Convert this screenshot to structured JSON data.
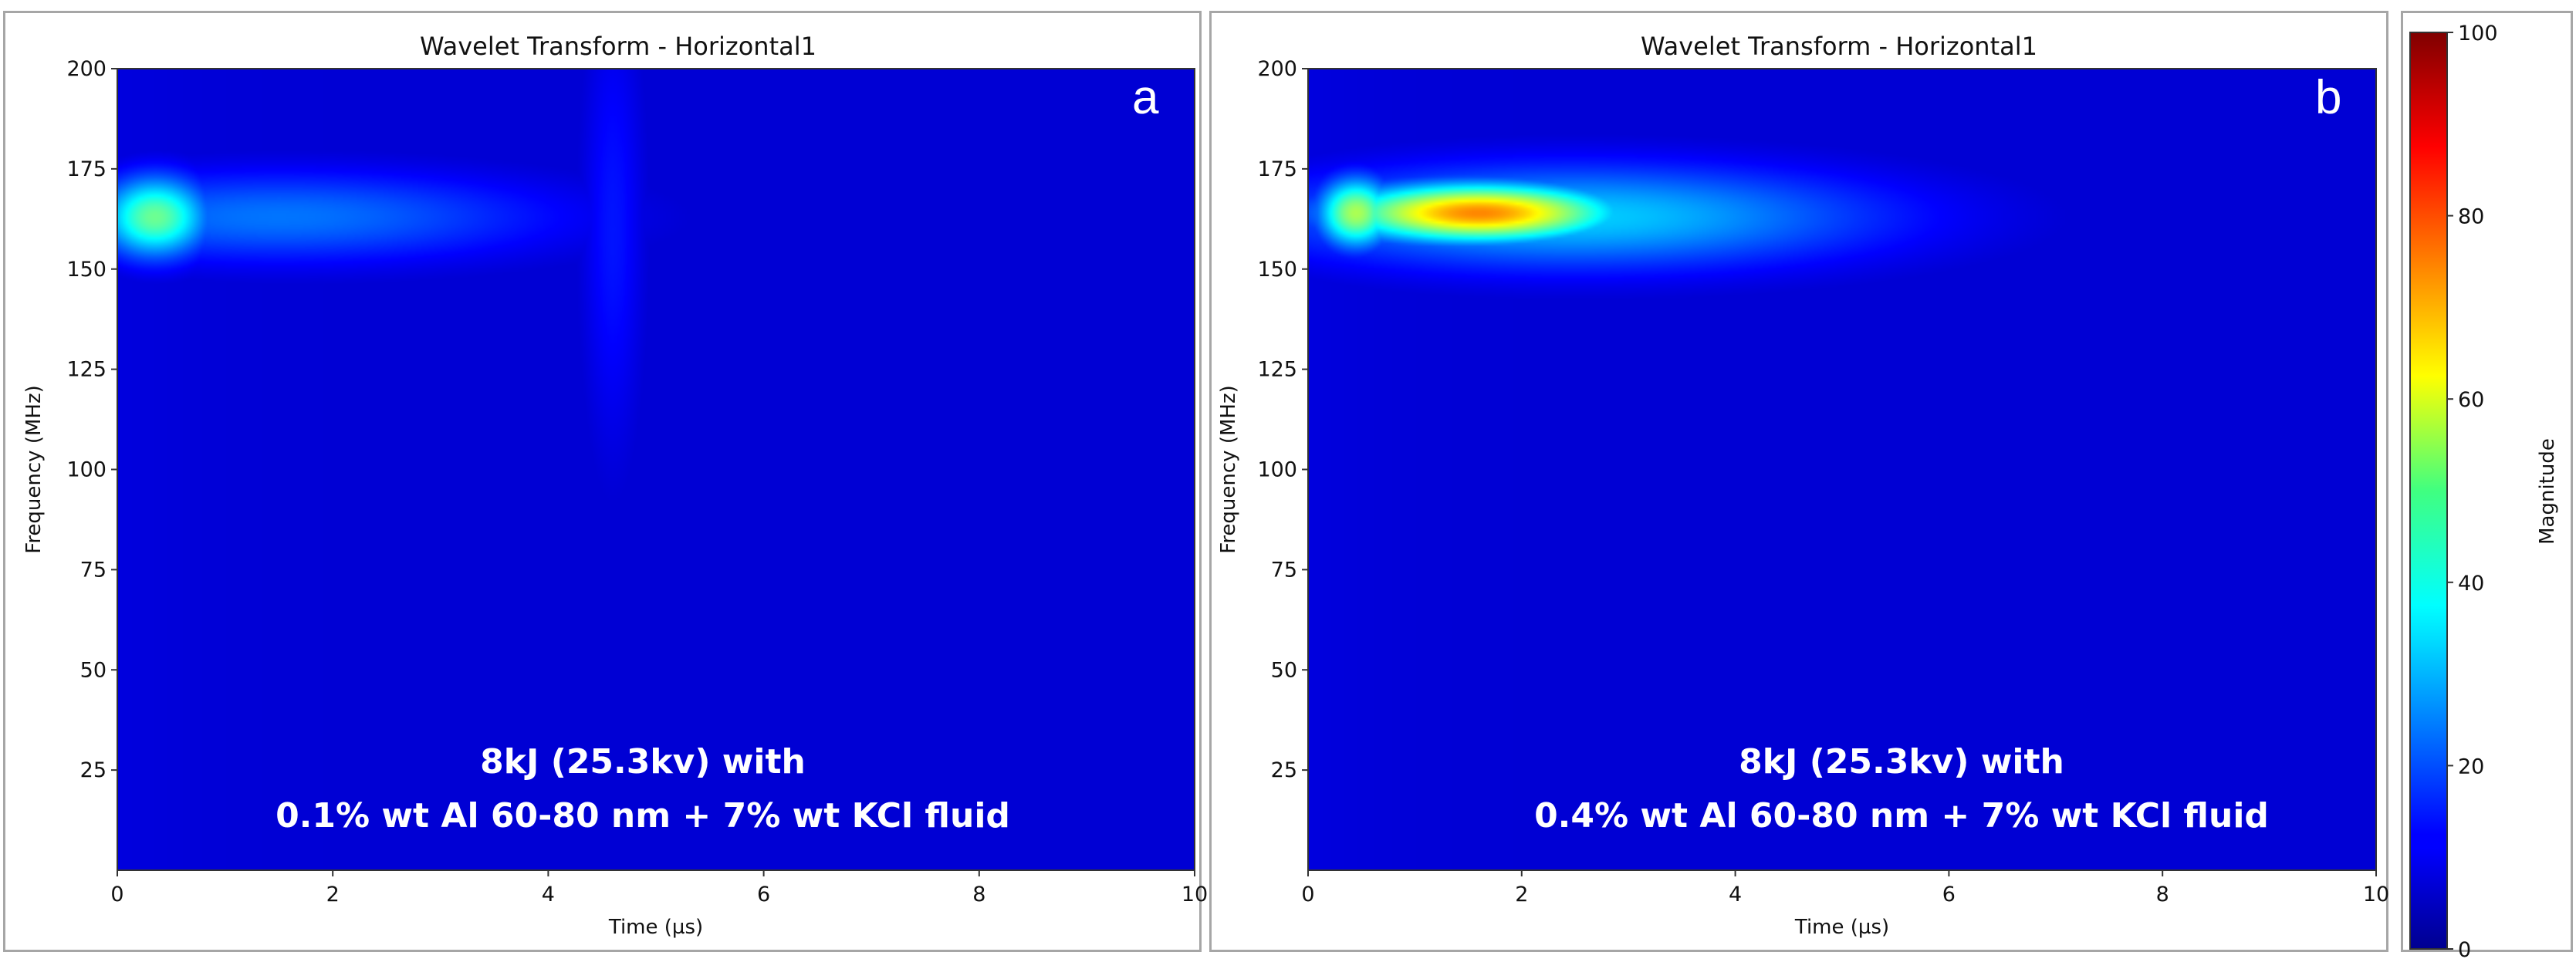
{
  "chart_data": [
    {
      "type": "heatmap",
      "title": "Wavelet Transform - Horizontal1",
      "panel_label": "a",
      "xlabel": "Time (µs)",
      "ylabel": "Frequency (MHz)",
      "xlim": [
        0,
        10
      ],
      "ylim": [
        0,
        200
      ],
      "xticks": [
        "0",
        "2",
        "4",
        "6",
        "8",
        "10"
      ],
      "yticks": [
        "25",
        "50",
        "75",
        "100",
        "125",
        "150",
        "175",
        "200"
      ],
      "annotation": [
        "8kJ (25.3kv) with",
        "0.1% wt Al 60-80 nm + 7% wt KCl fluid"
      ],
      "peaks": [
        {
          "t": 0.35,
          "f": 163,
          "magnitude": 48,
          "t_spread": 0.35,
          "f_spread": 7
        },
        {
          "t": 1.5,
          "f": 163,
          "magnitude": 20,
          "t_spread": 1.8,
          "f_spread": 8
        },
        {
          "t": 4.6,
          "f": 160,
          "magnitude": 9,
          "t_spread": 0.2,
          "f_spread": 40
        }
      ]
    },
    {
      "type": "heatmap",
      "title": "Wavelet Transform - Horizontal1",
      "panel_label": "b",
      "xlabel": "Time (µs)",
      "ylabel": "Frequency (MHz)",
      "xlim": [
        0,
        10
      ],
      "ylim": [
        0,
        200
      ],
      "xticks": [
        "0",
        "2",
        "4",
        "6",
        "8",
        "10"
      ],
      "yticks": [
        "25",
        "50",
        "75",
        "100",
        "125",
        "150",
        "175",
        "200"
      ],
      "annotation": [
        "8kJ (25.3kv) with",
        "0.4% wt Al 60-80 nm + 7% wt KCl fluid"
      ],
      "peaks": [
        {
          "t": 1.6,
          "f": 164,
          "magnitude": 78,
          "t_spread": 0.9,
          "f_spread": 5
        },
        {
          "t": 0.45,
          "f": 164,
          "magnitude": 55,
          "t_spread": 0.25,
          "f_spread": 6
        },
        {
          "t": 2.5,
          "f": 163,
          "magnitude": 30,
          "t_spread": 2.0,
          "f_spread": 9
        }
      ]
    }
  ],
  "colorbar": {
    "label": "Magnitude",
    "range": [
      0,
      100
    ],
    "ticks": [
      "0",
      "20",
      "40",
      "60",
      "80",
      "100"
    ],
    "colormap": "jet"
  }
}
